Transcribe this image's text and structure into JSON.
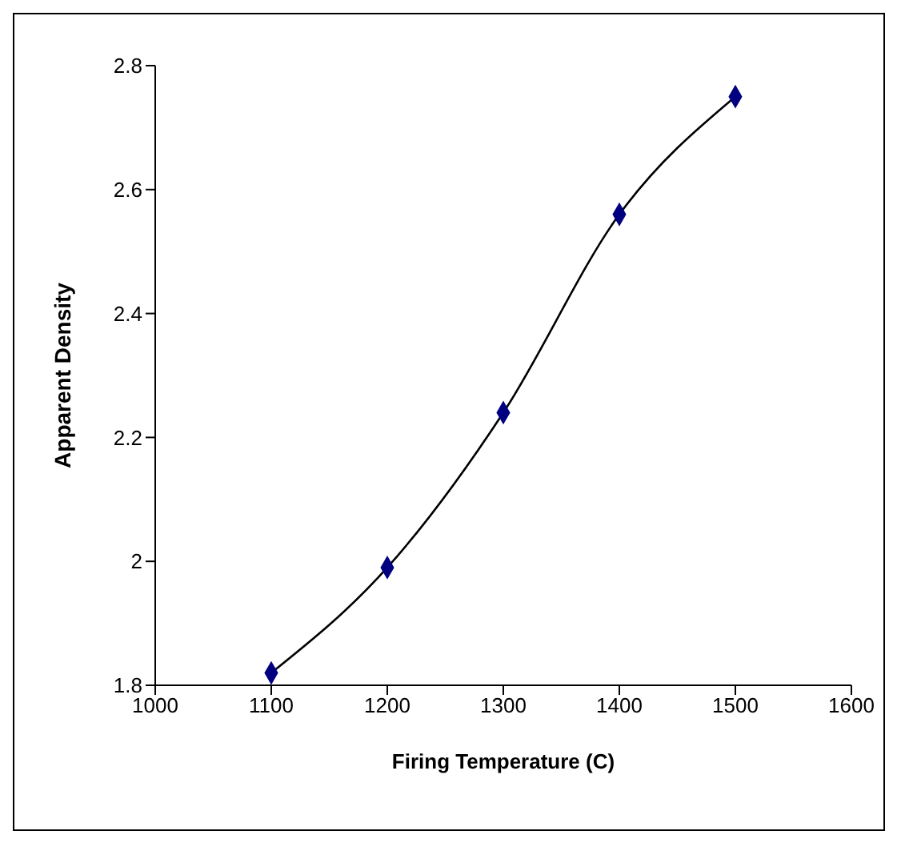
{
  "chart_data": {
    "type": "line",
    "xlabel": "Firing Temperature (C)",
    "ylabel": "Apparent Density",
    "x": [
      1100,
      1200,
      1300,
      1400,
      1500
    ],
    "series": [
      {
        "color": "#000000",
        "marker": "none",
        "values": [
          1.82,
          1.99,
          2.24,
          2.56,
          2.75
        ]
      },
      {
        "type": "scatter",
        "color": "#000080",
        "marker": "diamond",
        "values": [
          1.82,
          1.99,
          2.24,
          2.56,
          2.75
        ]
      }
    ],
    "xlim": [
      1000,
      1600
    ],
    "xticks": [
      1000,
      1100,
      1200,
      1300,
      1400,
      1500,
      1600
    ],
    "ylim": [
      1.8,
      2.8
    ],
    "yticks": [
      1.8,
      2,
      2.2,
      2.4,
      2.6,
      2.8
    ],
    "grid": false
  }
}
